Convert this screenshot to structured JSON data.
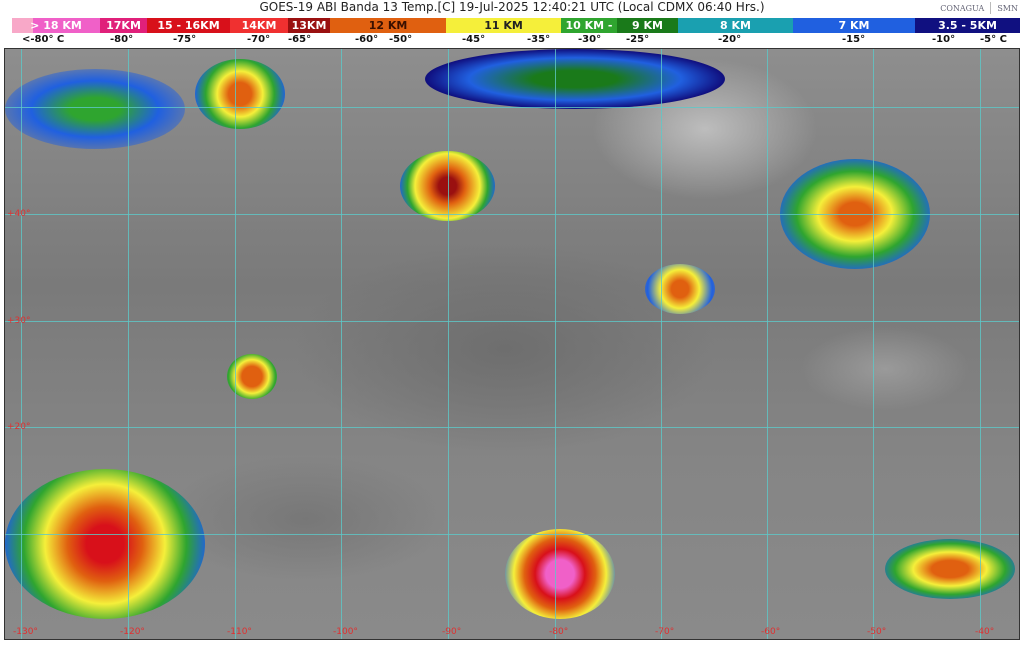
{
  "header": {
    "title": "GOES-19 ABI Banda 13 Temp.[C] 19-Jul-2025 12:40:21 UTC (Local CDMX  06:40 Hrs.)",
    "logos": [
      "CONAGUA",
      "SMN"
    ]
  },
  "legend": {
    "segments": [
      {
        "label": "> 18 KM",
        "color": "#f060c8"
      },
      {
        "label": "17KM",
        "color": "#e0207a"
      },
      {
        "label": "15 - 16KM",
        "color": "#d8101a"
      },
      {
        "label": "14KM",
        "color": "#f03030"
      },
      {
        "label": "13KM",
        "color": "#9a1010"
      },
      {
        "label": "12 KM",
        "color": "#e06010"
      },
      {
        "label": "11 KM",
        "color": "#f5ef3a"
      },
      {
        "label": "10 KM - ",
        "color": "#2fa52f"
      },
      {
        "label": "9 KM",
        "color": "#1a7a1a"
      },
      {
        "label": "8 KM",
        "color": "#1aa0b0"
      },
      {
        "label": "7 KM",
        "color": "#2060e0"
      },
      {
        "label": "3.5 - 5KM",
        "color": "#101080"
      }
    ],
    "temps": [
      "<-80° C",
      "-80°",
      "-75°",
      "-70°",
      "-65°",
      "-60°",
      "-50°",
      "-45°",
      "-35°",
      "-30°",
      "-25°",
      "-20°",
      "-15°",
      "-10°",
      "-5°  C"
    ]
  },
  "map": {
    "latitudes": [
      "+40°",
      "+30°",
      "+20°"
    ],
    "longitudes": [
      "-130°",
      "-120°",
      "-110°",
      "-100°",
      "-90°",
      "-80°",
      "-70°",
      "-60°",
      "-50°",
      "-40°"
    ],
    "grid_color": "#5ec8c8",
    "label_color": "#e03030"
  }
}
